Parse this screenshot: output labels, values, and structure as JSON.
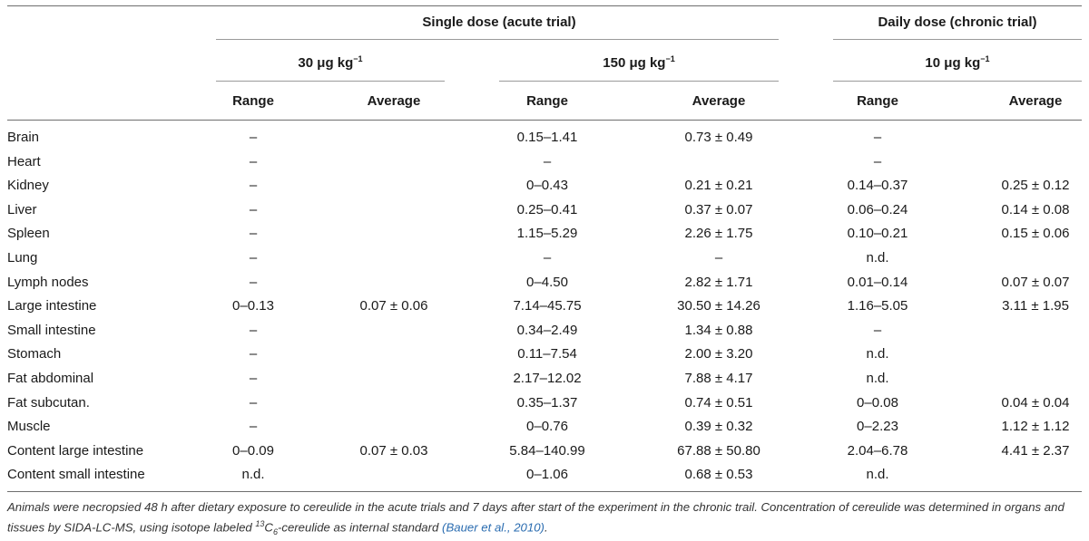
{
  "header": {
    "group_acute": "Single dose (acute trial)",
    "group_chronic": "Daily dose (chronic trial)",
    "dose_30": "30 μg kg",
    "dose_150": "150 μg kg",
    "dose_10": "10 μg kg",
    "dose_exponent": "−1",
    "col_range": "Range",
    "col_average": "Average"
  },
  "rows": [
    {
      "label": "Brain",
      "r30": "–",
      "a30": "",
      "r150": "0.15–1.41",
      "a150": "0.73 ± 0.49",
      "r10": "–",
      "a10": ""
    },
    {
      "label": "Heart",
      "r30": "–",
      "a30": "",
      "r150": "–",
      "a150": "",
      "r10": "–",
      "a10": ""
    },
    {
      "label": "Kidney",
      "r30": "–",
      "a30": "",
      "r150": "0–0.43",
      "a150": "0.21 ± 0.21",
      "r10": "0.14–0.37",
      "a10": "0.25 ± 0.12"
    },
    {
      "label": "Liver",
      "r30": "–",
      "a30": "",
      "r150": "0.25–0.41",
      "a150": "0.37 ± 0.07",
      "r10": "0.06–0.24",
      "a10": "0.14 ± 0.08"
    },
    {
      "label": "Spleen",
      "r30": "–",
      "a30": "",
      "r150": "1.15–5.29",
      "a150": "2.26 ± 1.75",
      "r10": "0.10–0.21",
      "a10": "0.15 ± 0.06"
    },
    {
      "label": "Lung",
      "r30": "–",
      "a30": "",
      "r150": "–",
      "a150": "–",
      "r10": "n.d.",
      "a10": ""
    },
    {
      "label": "Lymph nodes",
      "r30": "–",
      "a30": "",
      "r150": "0–4.50",
      "a150": "2.82 ± 1.71",
      "r10": "0.01–0.14",
      "a10": "0.07 ± 0.07"
    },
    {
      "label": "Large intestine",
      "r30": "0–0.13",
      "a30": "0.07 ± 0.06",
      "r150": "7.14–45.75",
      "a150": "30.50 ± 14.26",
      "r10": "1.16–5.05",
      "a10": "3.11 ± 1.95"
    },
    {
      "label": "Small intestine",
      "r30": "–",
      "a30": "",
      "r150": "0.34–2.49",
      "a150": "1.34 ± 0.88",
      "r10": "–",
      "a10": ""
    },
    {
      "label": "Stomach",
      "r30": "–",
      "a30": "",
      "r150": "0.11–7.54",
      "a150": "2.00 ± 3.20",
      "r10": "n.d.",
      "a10": ""
    },
    {
      "label": "Fat abdominal",
      "r30": "–",
      "a30": "",
      "r150": "2.17–12.02",
      "a150": "7.88 ± 4.17",
      "r10": "n.d.",
      "a10": ""
    },
    {
      "label": "Fat subcutan.",
      "r30": "–",
      "a30": "",
      "r150": "0.35–1.37",
      "a150": "0.74 ± 0.51",
      "r10": "0–0.08",
      "a10": "0.04 ± 0.04"
    },
    {
      "label": "Muscle",
      "r30": "–",
      "a30": "",
      "r150": "0–0.76",
      "a150": "0.39 ± 0.32",
      "r10": "0–2.23",
      "a10": "1.12 ± 1.12"
    },
    {
      "label": "Content large intestine",
      "r30": "0–0.09",
      "a30": "0.07 ± 0.03",
      "r150": "5.84–140.99",
      "a150": "67.88 ± 50.80",
      "r10": "2.04–6.78",
      "a10": "4.41 ± 2.37"
    },
    {
      "label": "Content small intestine",
      "r30": "n.d.",
      "a30": "",
      "r150": "0–1.06",
      "a150": "0.68 ± 0.53",
      "r10": "n.d.",
      "a10": ""
    }
  ],
  "footnote": {
    "text_1": "Animals were necropsied 48 h after dietary exposure to cereulide in the acute trials and 7 days after start of the experiment in the chronic trail. Concentration of cereulide was determined in organs and tissues by SIDA-LC-MS, using isotope labeled ",
    "iso_mass": "13",
    "iso_c": "C",
    "iso_sub": "6",
    "text_2": "-cereulide as internal standard ",
    "ref": "(Bauer et al., 2010)",
    "text_3": "."
  }
}
